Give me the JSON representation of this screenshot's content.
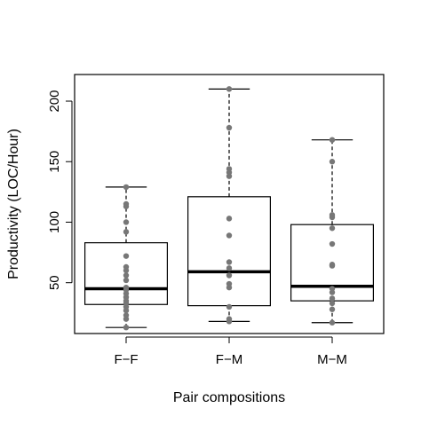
{
  "chart_data": {
    "type": "boxplot",
    "xlabel": "Pair compositions",
    "ylabel": "Productivity (LOC/Hour)",
    "ylim": [
      8,
      222
    ],
    "yticks": [
      50,
      100,
      150,
      200
    ],
    "point_color": "#777777",
    "categories": [
      "F−F",
      "F−M",
      "M−M"
    ],
    "boxes": [
      {
        "category": "F−F",
        "whisker_low": 13,
        "q1": 32,
        "median": 45,
        "q3": 83,
        "whisker_high": 129
      },
      {
        "category": "F−M",
        "whisker_low": 18,
        "q1": 31,
        "median": 59,
        "q3": 121,
        "whisker_high": 210
      },
      {
        "category": "M−M",
        "whisker_low": 17,
        "q1": 35,
        "median": 47,
        "q3": 98,
        "whisker_high": 168
      }
    ],
    "points": [
      [
        13,
        20,
        23,
        27,
        30,
        33,
        35,
        38,
        41,
        44,
        46,
        52,
        56,
        60,
        63,
        72,
        92,
        100,
        113,
        115,
        129
      ],
      [
        18,
        20,
        30,
        46,
        49,
        56,
        62,
        67,
        89,
        103,
        138,
        141,
        144,
        178,
        210
      ],
      [
        17,
        28,
        33,
        37,
        42,
        45,
        64,
        65,
        82,
        95,
        104,
        106,
        150,
        168
      ]
    ]
  }
}
